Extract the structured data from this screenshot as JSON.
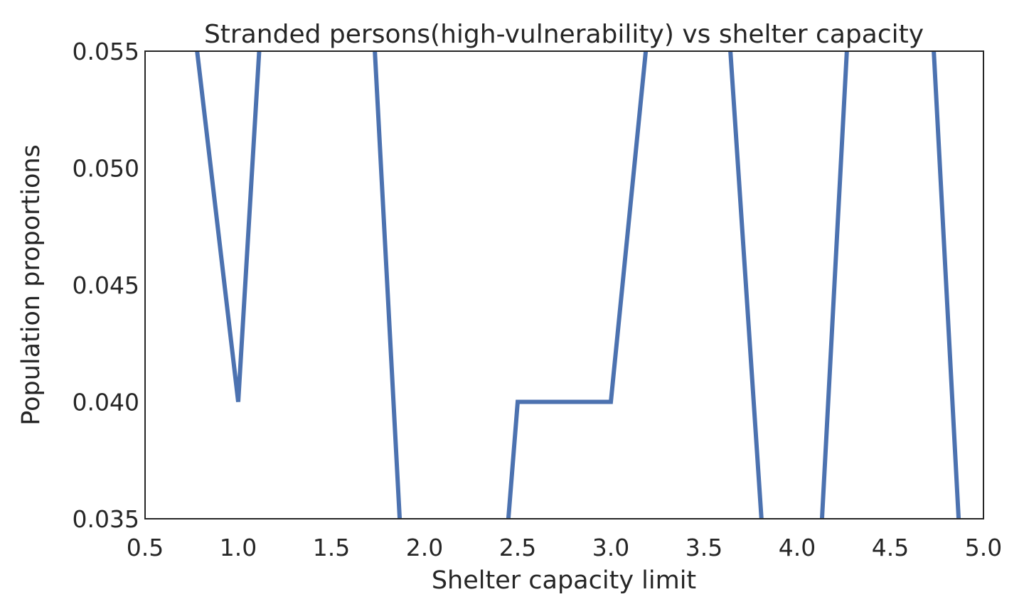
{
  "chart_data": {
    "type": "line",
    "title": "Stranded persons(high-vulnerability) vs shelter capacity",
    "xlabel": "Shelter capacity limit",
    "ylabel": "Population proportions",
    "xlim": [
      0.5,
      5.0
    ],
    "ylim": [
      0.035,
      0.055
    ],
    "xticks": [
      "0.5",
      "1.0",
      "1.5",
      "2.0",
      "2.5",
      "3.0",
      "3.5",
      "4.0",
      "4.5",
      "5.0"
    ],
    "yticks": [
      "0.035",
      "0.040",
      "0.045",
      "0.050",
      "0.055"
    ],
    "grid": false,
    "line_color": "#4c72b0",
    "axis_color": "#262626",
    "series": [
      {
        "x": [
          0.75,
          1.0,
          1.15,
          1.7,
          1.9,
          2.4,
          2.5,
          3.0,
          3.25,
          3.6,
          3.85,
          4.1,
          4.3,
          4.7,
          4.9
        ],
        "y": [
          0.057,
          0.04,
          0.06,
          0.06,
          0.03,
          0.03,
          0.04,
          0.04,
          0.06,
          0.06,
          0.03,
          0.03,
          0.06,
          0.06,
          0.03
        ]
      }
    ]
  }
}
